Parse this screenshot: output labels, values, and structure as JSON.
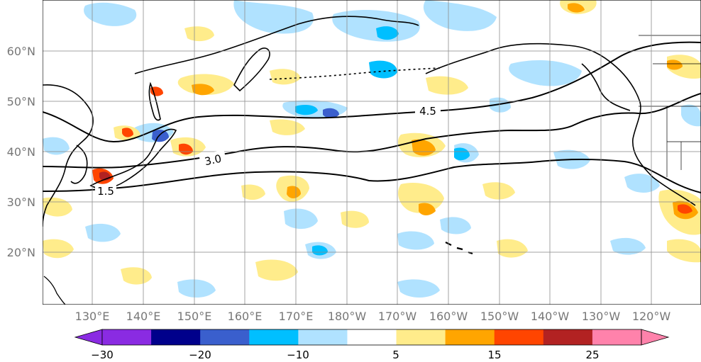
{
  "map": {
    "region": "North Pacific",
    "latitude_labels": [
      "60°N",
      "50°N",
      "40°N",
      "30°N",
      "20°N"
    ],
    "latitude_values": [
      60,
      50,
      40,
      30,
      20
    ],
    "longitude_labels": [
      "130°E",
      "140°E",
      "150°E",
      "160°E",
      "170°E",
      "180°W",
      "170°W",
      "160°W",
      "150°W",
      "140°W",
      "130°W",
      "120°W"
    ],
    "longitude_values": [
      130,
      140,
      150,
      160,
      170,
      180,
      190,
      200,
      210,
      220,
      230,
      240
    ],
    "contour_labels": [
      "4.5",
      "3.0",
      "1.5"
    ],
    "contour_values": [
      4.5,
      3.0,
      1.5
    ]
  },
  "colorbar": {
    "tick_labels": [
      "−30",
      "−20",
      "−10",
      "5",
      "15",
      "25"
    ],
    "levels": [
      -30,
      -25,
      -20,
      -15,
      -10,
      -5,
      5,
      10,
      15,
      20,
      25,
      30
    ],
    "colors": [
      "#8a2be2",
      "#00008b",
      "#3a5fcd",
      "#00bfff",
      "#b0e2ff",
      "#ffffff",
      "#ffec8b",
      "#ffa500",
      "#ff4500",
      "#b22222",
      "#ff82ab"
    ],
    "under_color": "#8a2be2",
    "over_color": "#ff82ab"
  }
}
